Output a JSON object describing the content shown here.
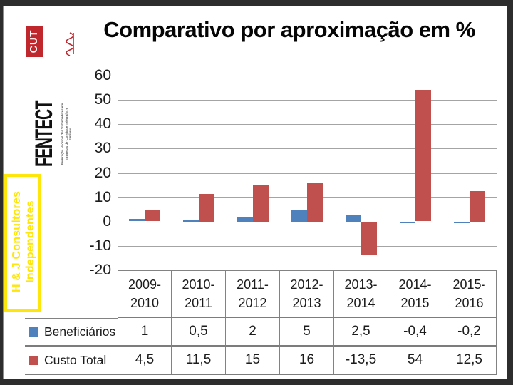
{
  "title": "Comparativo por aproximação em %",
  "sidebar": {
    "fentect_logo": {
      "name_label": "FENTECT",
      "cut_label": "CUT",
      "sub_text": "Federação Nacional dos Trabalhadores em Empresas de Correios e Telégrafos e Similares",
      "cut_color": "#c0272d"
    },
    "hj_box": {
      "line1": "H & J Consultores",
      "line2": "Independentes",
      "color": "#ffe60a"
    }
  },
  "chart_data": {
    "type": "bar",
    "title": "Comparativo por aproximação em %",
    "categories": [
      "2009-2010",
      "2010-2011",
      "2011-2012",
      "2012-2013",
      "2013-2014",
      "2014-2015",
      "2015-2016"
    ],
    "series": [
      {
        "name": "Beneficiários",
        "color": "#4F81BD",
        "values": [
          1,
          0.5,
          2,
          5,
          2.5,
          -0.4,
          -0.2
        ],
        "display": [
          "1",
          "0,5",
          "2",
          "5",
          "2,5",
          "-0,4",
          "-0,2"
        ]
      },
      {
        "name": "Custo Total",
        "color": "#C0504D",
        "values": [
          4.5,
          11.5,
          15,
          16,
          -13.5,
          54,
          12.5
        ],
        "display": [
          "4,5",
          "11,5",
          "15",
          "16",
          "-13,5",
          "54",
          "12,5"
        ]
      }
    ],
    "ylim": [
      -20,
      60
    ],
    "yticks": [
      60,
      50,
      40,
      30,
      20,
      10,
      0,
      -10,
      -20
    ],
    "grid": true,
    "legend_position": "data-table-left",
    "gridline_color": "#a4a4a4"
  }
}
